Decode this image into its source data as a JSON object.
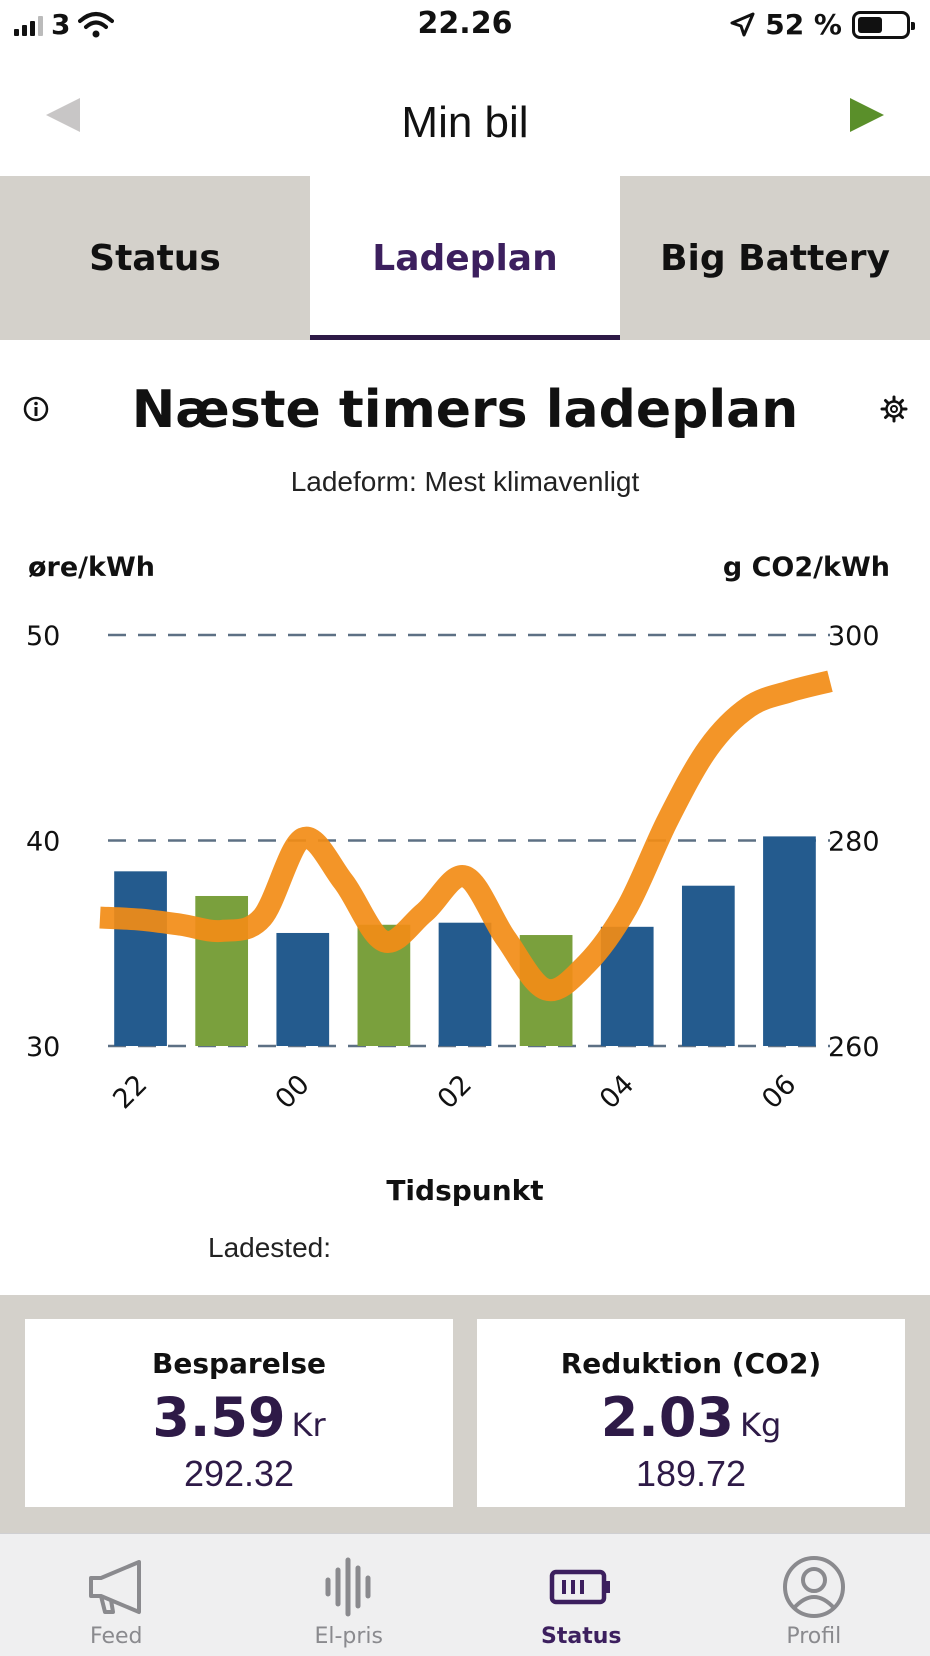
{
  "status_bar": {
    "carrier": "3",
    "time": "22.26",
    "battery": "52 %",
    "battery_level": 0.52
  },
  "header": {
    "title": "Min bil"
  },
  "tabs": [
    {
      "label": "Status",
      "active": false
    },
    {
      "label": "Ladeplan",
      "active": true
    },
    {
      "label": "Big Battery",
      "active": false
    }
  ],
  "chart_section": {
    "title": "Næste timers ladeplan",
    "subtitle": "Ladeform: Mest klimavenligt",
    "ladested": "Ladested:"
  },
  "chart_data": {
    "type": "bar",
    "left_axis_label": "øre/kWh",
    "right_axis_label": "g CO2/kWh",
    "xlabel": "Tidspunkt",
    "ylim_left": [
      30,
      50
    ],
    "ylim_right": [
      260,
      300
    ],
    "left_ticks": [
      30,
      40,
      50
    ],
    "right_ticks": [
      260,
      280,
      300
    ],
    "x_tick_labels": [
      "22",
      "00",
      "02",
      "04",
      "06"
    ],
    "grid": "dashed",
    "bars": {
      "hours": [
        "22",
        "23",
        "00",
        "01",
        "02",
        "03",
        "04",
        "05",
        "06"
      ],
      "values": [
        38.5,
        37.3,
        35.5,
        35.9,
        36.0,
        35.4,
        35.8,
        37.8,
        40.2
      ],
      "charging": [
        false,
        true,
        false,
        true,
        false,
        true,
        false,
        false,
        false
      ],
      "colors": {
        "normal": "#245b8e",
        "charging": "#7aa03d"
      }
    },
    "line": {
      "color": "#f28c16",
      "x": [
        21.5,
        22,
        22.5,
        23,
        23.5,
        24,
        24.5,
        25,
        25.5,
        26,
        26.5,
        27,
        27.5,
        28,
        28.5,
        29,
        29.5,
        30,
        30.5
      ],
      "values": [
        272.5,
        272.3,
        271.8,
        271.2,
        272.5,
        280.2,
        276.0,
        270.2,
        273.0,
        276.5,
        270.5,
        265.5,
        268.0,
        273.5,
        282.0,
        289.0,
        293.0,
        294.5,
        295.5
      ]
    }
  },
  "stats": {
    "savings": {
      "label": "Besparelse",
      "value": "3.59",
      "unit": "Kr",
      "sub": "292.32"
    },
    "reduction": {
      "label": "Reduktion (CO2)",
      "value": "2.03",
      "unit": "Kg",
      "sub": "189.72"
    }
  },
  "bottom_nav": [
    {
      "label": "Feed",
      "icon": "megaphone-icon",
      "active": false
    },
    {
      "label": "El-pris",
      "icon": "waveform-icon",
      "active": false
    },
    {
      "label": "Status",
      "icon": "battery-icon",
      "active": true
    },
    {
      "label": "Profil",
      "icon": "profile-icon",
      "active": false
    }
  ]
}
